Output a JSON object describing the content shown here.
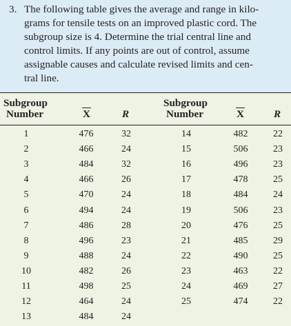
{
  "problem": {
    "number": "3.",
    "lines": [
      "The following table gives the average and range in kilo-",
      "grams for tensile tests on an improved plastic cord. The",
      "subgroup size is 4. Determine the trial central line and",
      "control limits. If any points are out of control, assume",
      "assignable causes and calculate revised limits and cen-",
      "tral line."
    ]
  },
  "table": {
    "headers": {
      "subgroup_line1": "Subgroup",
      "subgroup_line2": "Number",
      "xbar": "X",
      "range": "R"
    },
    "left_rows": [
      {
        "n": "1",
        "x": "476",
        "r": "32"
      },
      {
        "n": "2",
        "x": "466",
        "r": "24"
      },
      {
        "n": "3",
        "x": "484",
        "r": "32"
      },
      {
        "n": "4",
        "x": "466",
        "r": "26"
      },
      {
        "n": "5",
        "x": "470",
        "r": "24"
      },
      {
        "n": "6",
        "x": "494",
        "r": "24"
      },
      {
        "n": "7",
        "x": "486",
        "r": "28"
      },
      {
        "n": "8",
        "x": "496",
        "r": "23"
      },
      {
        "n": "9",
        "x": "488",
        "r": "24"
      },
      {
        "n": "10",
        "x": "482",
        "r": "26"
      },
      {
        "n": "11",
        "x": "498",
        "r": "25"
      },
      {
        "n": "12",
        "x": "464",
        "r": "24"
      },
      {
        "n": "13",
        "x": "484",
        "r": "24"
      }
    ],
    "right_rows": [
      {
        "n": "14",
        "x": "482",
        "r": "22"
      },
      {
        "n": "15",
        "x": "506",
        "r": "23"
      },
      {
        "n": "16",
        "x": "496",
        "r": "23"
      },
      {
        "n": "17",
        "x": "478",
        "r": "25"
      },
      {
        "n": "18",
        "x": "484",
        "r": "24"
      },
      {
        "n": "19",
        "x": "506",
        "r": "23"
      },
      {
        "n": "20",
        "x": "476",
        "r": "25"
      },
      {
        "n": "21",
        "x": "485",
        "r": "29"
      },
      {
        "n": "22",
        "x": "490",
        "r": "25"
      },
      {
        "n": "23",
        "x": "463",
        "r": "22"
      },
      {
        "n": "24",
        "x": "469",
        "r": "27"
      },
      {
        "n": "25",
        "x": "474",
        "r": "22"
      }
    ]
  }
}
